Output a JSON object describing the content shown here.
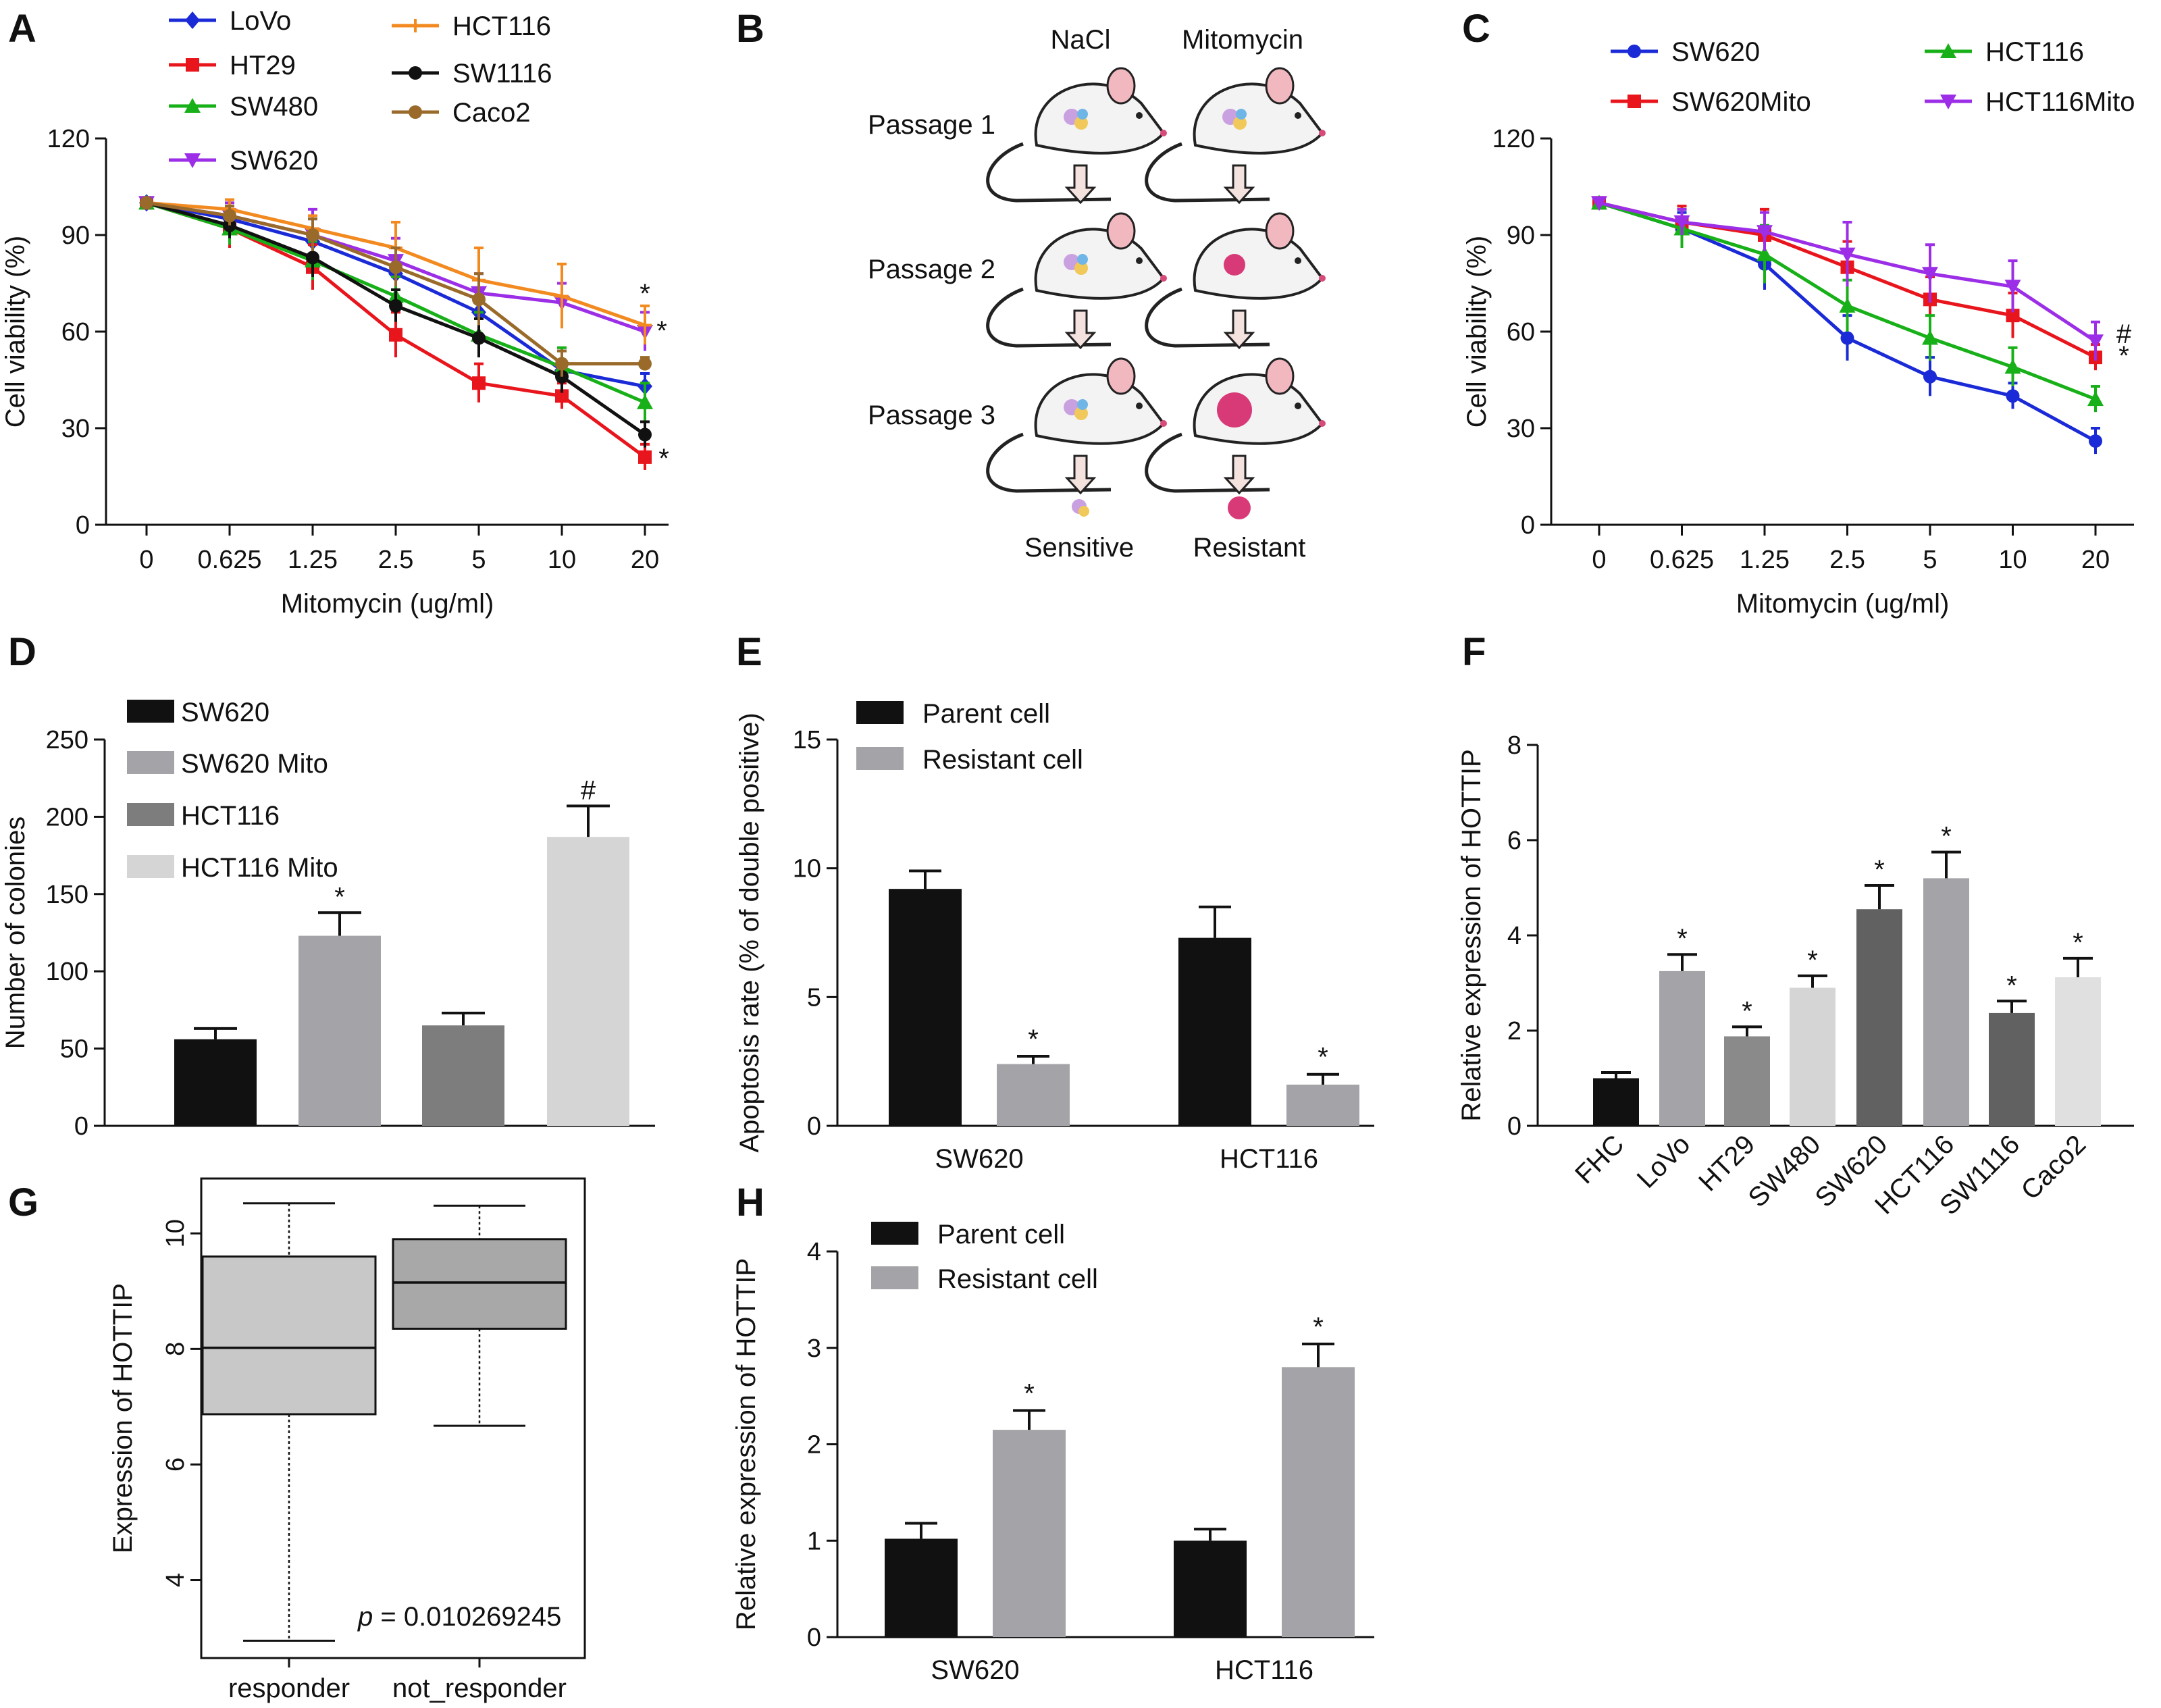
{
  "panel_labels": [
    "A",
    "B",
    "C",
    "D",
    "E",
    "F",
    "G",
    "H"
  ],
  "diagram_B": {
    "columns": [
      "NaCl",
      "Mitomycin"
    ],
    "rows": [
      "Passage 1",
      "Passage 2",
      "Passage 3"
    ],
    "outcomes": [
      "Sensitive",
      "Resistant"
    ],
    "colors": {
      "mouse_body": "#f3f3f3",
      "ear": "#f2b8c0",
      "tumor_mixed": "#c9a0e0",
      "tumor_resistant": "#d83a78",
      "arrow": "#f4e2df"
    }
  },
  "chart_data": [
    {
      "id": "A",
      "type": "line",
      "title": "",
      "xlabel": "Mitomycin (ug/ml)",
      "ylabel": "Cell viability (%)",
      "categories": [
        "0",
        "0.625",
        "1.25",
        "2.5",
        "5",
        "10",
        "20"
      ],
      "ylim": [
        0,
        120
      ],
      "yticks": [
        "0",
        "30",
        "60",
        "90",
        "120"
      ],
      "series": [
        {
          "name": "LoVo",
          "color": "#1a2ad6",
          "marker": "diamond",
          "values": [
            100,
            95,
            88,
            78,
            66,
            48,
            43
          ],
          "errors": [
            1,
            3,
            7,
            8,
            7,
            6,
            4
          ]
        },
        {
          "name": "HT29",
          "color": "#e8151c",
          "marker": "square",
          "values": [
            100,
            92,
            80,
            59,
            44,
            40,
            21
          ],
          "errors": [
            1,
            6,
            7,
            7,
            6,
            4,
            4
          ]
        },
        {
          "name": "SW480",
          "color": "#18b018",
          "marker": "triangle",
          "values": [
            100,
            92,
            82,
            71,
            59,
            49,
            38
          ],
          "errors": [
            1,
            5,
            6,
            6,
            7,
            6,
            6
          ]
        },
        {
          "name": "SW620",
          "color": "#9b2ee6",
          "marker": "triangle-down",
          "values": [
            100,
            96,
            90,
            82,
            72,
            69,
            60
          ],
          "errors": [
            1,
            4,
            8,
            7,
            6,
            6,
            6
          ]
        },
        {
          "name": "HCT116",
          "color": "#f28a20",
          "marker": "plus",
          "values": [
            100,
            98,
            92,
            86,
            76,
            71,
            62
          ],
          "errors": [
            1,
            3,
            4,
            8,
            10,
            10,
            6
          ]
        },
        {
          "name": "SW1116",
          "color": "#111111",
          "marker": "circle",
          "values": [
            100,
            93,
            83,
            68,
            58,
            46,
            28
          ],
          "errors": [
            1,
            4,
            6,
            5,
            6,
            5,
            4
          ]
        },
        {
          "name": "Caco2",
          "color": "#9a6a2a",
          "marker": "circle",
          "values": [
            100,
            96,
            90,
            80,
            70,
            50,
            50
          ],
          "errors": [
            1,
            3,
            5,
            6,
            8,
            4,
            2
          ]
        }
      ],
      "annotations": [
        "*",
        "*",
        "*"
      ]
    },
    {
      "id": "C",
      "type": "line",
      "title": "",
      "xlabel": "Mitomycin (ug/ml)",
      "ylabel": "Cell viability (%)",
      "categories": [
        "0",
        "0.625",
        "1.25",
        "2.5",
        "5",
        "10",
        "20"
      ],
      "ylim": [
        0,
        120
      ],
      "yticks": [
        "0",
        "30",
        "60",
        "90",
        "120"
      ],
      "series": [
        {
          "name": "SW620",
          "color": "#1a2ad6",
          "marker": "circle",
          "values": [
            100,
            92,
            81,
            58,
            46,
            40,
            26
          ],
          "errors": [
            1,
            5,
            8,
            7,
            6,
            4,
            4
          ]
        },
        {
          "name": "SW620Mito",
          "color": "#e8151c",
          "marker": "square",
          "values": [
            100,
            94,
            90,
            80,
            70,
            65,
            52
          ],
          "errors": [
            1,
            5,
            8,
            8,
            7,
            7,
            4
          ]
        },
        {
          "name": "HCT116",
          "color": "#18b018",
          "marker": "triangle",
          "values": [
            100,
            92,
            84,
            68,
            58,
            49,
            39
          ],
          "errors": [
            1,
            6,
            9,
            8,
            7,
            6,
            4
          ]
        },
        {
          "name": "HCT116Mito",
          "color": "#9b2ee6",
          "marker": "triangle-down",
          "values": [
            100,
            94,
            91,
            84,
            78,
            74,
            57
          ],
          "errors": [
            1,
            4,
            6,
            10,
            9,
            8,
            6
          ]
        }
      ],
      "annotations": [
        "#",
        "*"
      ]
    },
    {
      "id": "D",
      "type": "bar",
      "xlabel": "",
      "ylabel": "Number of colonies",
      "categories": [
        "SW620",
        "SW620 Mito",
        "HCT116",
        "HCT116 Mito"
      ],
      "values": [
        56,
        123,
        65,
        187
      ],
      "errors": [
        7,
        15,
        8,
        20
      ],
      "colors": [
        "#111111",
        "#a4a4a8",
        "#7d7d7d",
        "#d5d5d5"
      ],
      "annotations": [
        "",
        "*",
        "",
        "#"
      ],
      "ylim": [
        0,
        250
      ],
      "yticks": [
        "0",
        "50",
        "100",
        "150",
        "200",
        "250"
      ],
      "legend": [
        "SW620",
        "SW620 Mito",
        "HCT116",
        "HCT116 Mito"
      ]
    },
    {
      "id": "E",
      "type": "bar",
      "xlabel": "",
      "ylabel": "Apoptosis rate (% of double positive)",
      "categories": [
        "SW620",
        "HCT116"
      ],
      "series": [
        {
          "name": "Parent cell",
          "color": "#111111",
          "values": [
            9.2,
            7.3
          ],
          "errors": [
            0.7,
            1.2
          ]
        },
        {
          "name": "Resistant cell",
          "color": "#a4a4a8",
          "values": [
            2.4,
            1.6
          ],
          "errors": [
            0.3,
            0.4
          ]
        }
      ],
      "annotations": [
        "*",
        "*"
      ],
      "ylim": [
        0,
        15
      ],
      "yticks": [
        "0",
        "5",
        "10",
        "15"
      ]
    },
    {
      "id": "F",
      "type": "bar",
      "xlabel": "",
      "ylabel": "Relative expression of HOTTIP",
      "categories": [
        "FHC",
        "LoVo",
        "HT29",
        "SW480",
        "SW620",
        "HCT116",
        "SW1116",
        "Caco2"
      ],
      "values": [
        1.0,
        3.25,
        1.88,
        2.9,
        4.55,
        5.2,
        2.37,
        3.12
      ],
      "errors": [
        0.12,
        0.35,
        0.2,
        0.25,
        0.5,
        0.55,
        0.25,
        0.4
      ],
      "colors": [
        "#111111",
        "#a4a4a8",
        "#8a8a8a",
        "#d5d5d5",
        "#616161",
        "#a4a4a8",
        "#616161",
        "#e0e0e0"
      ],
      "annotations": [
        "",
        "*",
        "*",
        "*",
        "*",
        "*",
        "*",
        "*"
      ],
      "ylim": [
        0,
        8
      ],
      "yticks": [
        "0",
        "2",
        "4",
        "6",
        "8"
      ]
    },
    {
      "id": "G",
      "type": "box",
      "xlabel": "",
      "ylabel": "Expression of HOTTIP",
      "categories": [
        "responder",
        "not_responder"
      ],
      "boxes": [
        {
          "name": "responder",
          "min": 2.95,
          "q1": 6.87,
          "median": 8.02,
          "q3": 9.6,
          "max": 10.52
        },
        {
          "name": "not_responder",
          "min": 6.67,
          "q1": 8.35,
          "median": 9.15,
          "q3": 9.9,
          "max": 10.48
        }
      ],
      "colors": [
        "#c8c8c8",
        "#a8a8a8"
      ],
      "ylim": [
        2.65,
        10.95
      ],
      "yticks": [
        "4",
        "6",
        "8",
        "10"
      ],
      "pvalue_label": "p",
      "pvalue_text": " = 0.010269245"
    },
    {
      "id": "H",
      "type": "bar",
      "xlabel": "",
      "ylabel": "Relative expression of HOTTIP",
      "categories": [
        "SW620",
        "HCT116"
      ],
      "series": [
        {
          "name": "Parent cell",
          "color": "#111111",
          "values": [
            1.02,
            1.0
          ],
          "errors": [
            0.16,
            0.12
          ]
        },
        {
          "name": "Resistant cell",
          "color": "#a4a4a8",
          "values": [
            2.15,
            2.8
          ],
          "errors": [
            0.2,
            0.24
          ]
        }
      ],
      "annotations": [
        "*",
        "*"
      ],
      "ylim": [
        0,
        4
      ],
      "yticks": [
        "0",
        "1",
        "2",
        "3",
        "4"
      ]
    }
  ]
}
